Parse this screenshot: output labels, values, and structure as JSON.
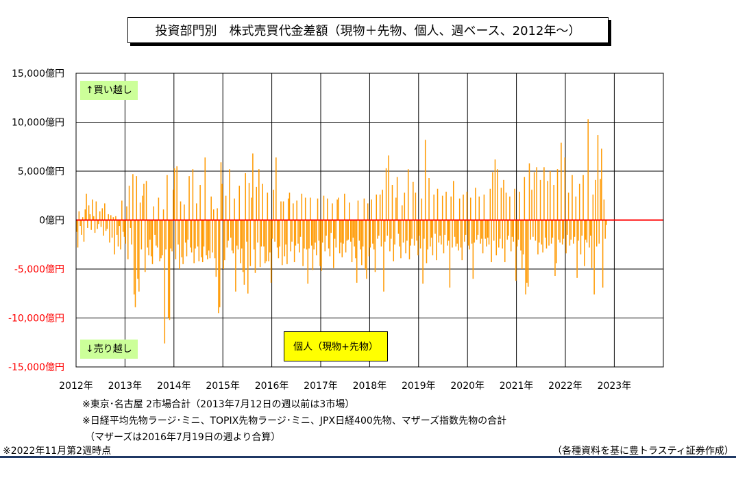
{
  "title": "投資部門別　株式売買代金差額（現物＋先物、個人、週ベース、2012年～）",
  "annotations": {
    "buy": "↑買い越し",
    "sell": "↓売り越し",
    "series_label": "個人（現物+先物）"
  },
  "notes": {
    "note1": "※東京･名古屋 2市場合計（2013年7月12日の週以前は3市場）",
    "note2": "※日経平均先物ラージ･ミニ、TOPIX先物ラージ･ミニ、JPX日経400先物、マザーズ指数先物の合計",
    "note3": "（マザーズは2016年7月19日の週より合算）",
    "timestamp": "※2022年11月第2週時点",
    "source": "（各種資料を基に豊トラスティ証券作成）"
  },
  "colors": {
    "bar": "#ff9900",
    "zero_line": "#ff0000",
    "negative_tick": "#ff0000",
    "grid": "#000000",
    "annotation_bg": "#ccff99",
    "series_box_bg": "#ffff00"
  },
  "chart_data": {
    "type": "bar",
    "ylabel": "",
    "xlabel": "",
    "ylim": [
      -15000,
      15000
    ],
    "yticks": [
      {
        "value": 15000,
        "label": "15,000億円"
      },
      {
        "value": 10000,
        "label": "10,000億円"
      },
      {
        "value": 5000,
        "label": "5,000億円"
      },
      {
        "value": 0,
        "label": "0億円"
      },
      {
        "value": -5000,
        "label": "-5,000億円"
      },
      {
        "value": -10000,
        "label": "-10,000億円"
      },
      {
        "value": -15000,
        "label": "-15,000億円"
      }
    ],
    "xticks": [
      "2012年",
      "2013年",
      "2014年",
      "2015年",
      "2016年",
      "2017年",
      "2018年",
      "2019年",
      "2020年",
      "2021年",
      "2022年",
      "2023年"
    ],
    "x_start_year": 2012,
    "x_end_year": 2023,
    "grid": true,
    "series": [
      {
        "values": [
          -1200,
          -2800,
          900,
          -600,
          -1500,
          300,
          -2200,
          1100,
          2700,
          -800,
          1500,
          600,
          -1000,
          2100,
          400,
          -1300,
          1900,
          -900,
          -400,
          900,
          -700,
          1200,
          -1600,
          1700,
          -1100,
          -900,
          600,
          -2300,
          500,
          -1800,
          300,
          -3500,
          400,
          -1500,
          -2700,
          -600,
          -3000,
          2000,
          -1200,
          -1700,
          -2400,
          1400,
          -4000,
          3500,
          -800,
          -2500,
          4700,
          -7600,
          -8900,
          4500,
          -6000,
          -7300,
          1800,
          -3000,
          2500,
          3700,
          -5300,
          4000,
          -2800,
          -3600,
          -2000,
          -3700,
          -4500,
          1400,
          -1500,
          -2600,
          -2800,
          2300,
          -4200,
          -3900,
          -3600,
          1100,
          -12600,
          -3000,
          4600,
          -10000,
          -10200,
          -2900,
          -3200,
          3100,
          5300,
          -4000,
          5500,
          -2500,
          -5000,
          1900,
          -3800,
          -4500,
          1600,
          -2300,
          -3700,
          -2000,
          4500,
          -2800,
          -3300,
          5200,
          -4400,
          -2900,
          1700,
          -2700,
          -4200,
          3600,
          -3800,
          -4300,
          -2700,
          6400,
          -3600,
          -4000,
          -3100,
          -3900,
          2400,
          -3300,
          1100,
          -3900,
          -5800,
          1200,
          -9500,
          -8900,
          5900,
          3700,
          -5000,
          -4100,
          2500,
          -2800,
          -2100,
          5200,
          -1800,
          -3100,
          -3400,
          2200,
          -7300,
          -2600,
          -3000,
          3500,
          -4400,
          -2900,
          -5300,
          -6600,
          4800,
          -2200,
          -7500,
          3800,
          -4700,
          2300,
          6800,
          -3000,
          -5400,
          3400,
          -2300,
          5200,
          -4800,
          -2700,
          3700,
          -2700,
          -4400,
          -4200,
          2800,
          -4200,
          -3300,
          -6400,
          -1900,
          3100,
          -2200,
          6400,
          -2800,
          -3900,
          -2700,
          1900,
          -4600,
          1900,
          -3700,
          -2500,
          -4500,
          2200,
          2800,
          -3200,
          -2200,
          1700,
          -4300,
          -2600,
          2000,
          -2400,
          -3300,
          -1700,
          2700,
          -4700,
          -2900,
          2300,
          -3000,
          -6500,
          -2900,
          2300,
          -2600,
          -5100,
          -3000,
          -2300,
          -3600,
          2200,
          -2100,
          -4700,
          -5200,
          -2300,
          2500,
          -3200,
          -1600,
          2200,
          -2900,
          -3700,
          -1300,
          1700,
          -4900,
          -1900,
          -2800,
          2100,
          2300,
          -3400,
          -2300,
          -3800,
          -2400,
          2700,
          -3300,
          -2100,
          -2000,
          1800,
          -2200,
          -4300,
          -1800,
          -2700,
          -3900,
          -6400,
          2000,
          -2100,
          -3000,
          -4600,
          -2700,
          2200,
          -5000,
          -6000,
          1700,
          -3700,
          -2800,
          2100,
          -2400,
          -3000,
          -5300,
          2600,
          -1900,
          -1600,
          2600,
          -2700,
          3100,
          -7300,
          -2200,
          5300,
          -1600,
          6600,
          -3200,
          -1900,
          3600,
          -4200,
          -2500,
          2300,
          4400,
          -1400,
          -2700,
          -3900,
          1500,
          -2300,
          2800,
          -3400,
          -2100,
          5200,
          -4000,
          -2600,
          -1900,
          3900,
          -2600,
          2800,
          -2100,
          -3600,
          -1600,
          -2900,
          2200,
          -6500,
          -1900,
          8200,
          -4400,
          -3000,
          4300,
          -2700,
          -1800,
          -3600,
          2600,
          -1400,
          -4100,
          3200,
          -2300,
          -1600,
          -2500,
          2500,
          -3400,
          -1500,
          2900,
          -2600,
          -2100,
          -6900,
          2400,
          -2800,
          4000,
          -1700,
          -2700,
          -2400,
          -3100,
          2200,
          -2800,
          -4100,
          2600,
          -2200,
          -1500,
          2900,
          -2600,
          -3000,
          2300,
          -2400,
          -6000,
          -2300,
          3300,
          -2000,
          -1500,
          2400,
          -2400,
          -1900,
          -3400,
          2600,
          -1900,
          -2700,
          -1800,
          -2500,
          3200,
          -4300,
          4900,
          -2100,
          6200,
          -3600,
          5200,
          -2800,
          -1900,
          3300,
          -2900,
          4100,
          -4300,
          2800,
          -2000,
          -1600,
          2400,
          -3200,
          -1700,
          -2200,
          3200,
          -6200,
          -2700,
          -2000,
          2900,
          -3100,
          -5000,
          -3500,
          4400,
          -7600,
          -6400,
          -6800,
          5800,
          -2000,
          3100,
          -1700,
          4900,
          -2100,
          5400,
          -3500,
          -2300,
          4100,
          -2500,
          -3300,
          5400,
          -1800,
          -2900,
          4000,
          -2600,
          5000,
          -2400,
          -1800,
          3600,
          -5700,
          -4400,
          5200,
          -2000,
          -2300,
          7900,
          -2500,
          -1900,
          6400,
          -3400,
          -1500,
          2800,
          -2600,
          -2000,
          4600,
          -2400,
          -1700,
          2400,
          -5900,
          -2100,
          3700,
          -3500,
          -1600,
          4600,
          -4700,
          -2000,
          -2300,
          10300,
          -2800,
          -1600,
          -4900,
          2600,
          -7600,
          4100,
          -2700,
          8700,
          -2400,
          4200,
          7300,
          -6900,
          2100,
          -1900,
          -500
        ]
      }
    ]
  }
}
